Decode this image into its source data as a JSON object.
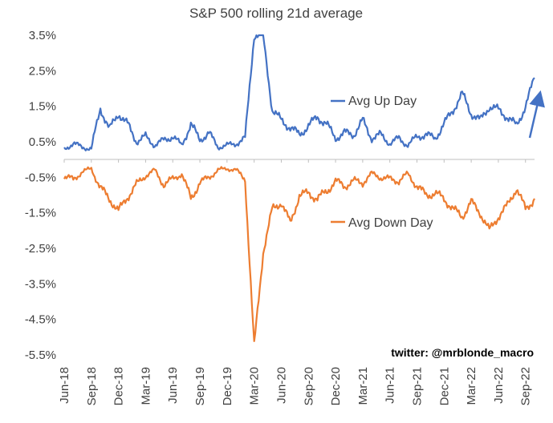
{
  "chart_data": {
    "type": "line",
    "title": "S&P 500 rolling 21d average",
    "xlabel": "",
    "ylabel": "",
    "ylim": [
      -5.5,
      3.5
    ],
    "yticks": [
      "3.5%",
      "2.5%",
      "1.5%",
      "0.5%",
      "-0.5%",
      "-1.5%",
      "-2.5%",
      "-3.5%",
      "-4.5%",
      "-5.5%"
    ],
    "ytick_values": [
      3.5,
      2.5,
      1.5,
      0.5,
      -0.5,
      -1.5,
      -2.5,
      -3.5,
      -4.5,
      -5.5
    ],
    "xticks": [
      "Jun-18",
      "Sep-18",
      "Dec-18",
      "Mar-19",
      "Jun-19",
      "Sep-19",
      "Dec-19",
      "Mar-20",
      "Jun-20",
      "Sep-20",
      "Dec-20",
      "Mar-21",
      "Jun-21",
      "Sep-21",
      "Dec-21",
      "Mar-22",
      "Jun-22",
      "Sep-22"
    ],
    "grid": false,
    "credit": "twitter: @mrblonde_macro",
    "series": [
      {
        "name": "Avg Up Day",
        "color": "#4472C4",
        "points": [
          [
            "Jun-18",
            0.3
          ],
          [
            "Jul-18",
            0.45
          ],
          [
            "Aug-18",
            0.35
          ],
          [
            "Sep-18",
            0.3
          ],
          [
            "Oct-18",
            1.45
          ],
          [
            "Nov-18",
            0.85
          ],
          [
            "Dec-18",
            1.3
          ],
          [
            "Jan-19",
            1.0
          ],
          [
            "Feb-19",
            0.5
          ],
          [
            "Mar-19",
            0.65
          ],
          [
            "Apr-19",
            0.4
          ],
          [
            "May-19",
            0.55
          ],
          [
            "Jun-19",
            0.65
          ],
          [
            "Jul-19",
            0.4
          ],
          [
            "Aug-19",
            1.0
          ],
          [
            "Sep-19",
            0.55
          ],
          [
            "Oct-19",
            0.75
          ],
          [
            "Nov-19",
            0.35
          ],
          [
            "Dec-19",
            0.4
          ],
          [
            "Jan-20",
            0.45
          ],
          [
            "Feb-20",
            0.6
          ],
          [
            "Mar-20",
            3.5
          ],
          [
            "Apr-20",
            3.5
          ],
          [
            "May-20",
            1.4
          ],
          [
            "Jun-20",
            1.1
          ],
          [
            "Jul-20",
            0.9
          ],
          [
            "Aug-20",
            0.7
          ],
          [
            "Sep-20",
            0.95
          ],
          [
            "Oct-20",
            1.2
          ],
          [
            "Nov-20",
            1.0
          ],
          [
            "Dec-20",
            0.6
          ],
          [
            "Jan-21",
            0.75
          ],
          [
            "Feb-21",
            0.7
          ],
          [
            "Mar-21",
            1.1
          ],
          [
            "Apr-21",
            0.6
          ],
          [
            "May-21",
            0.7
          ],
          [
            "Jun-21",
            0.45
          ],
          [
            "Jul-21",
            0.6
          ],
          [
            "Aug-21",
            0.4
          ],
          [
            "Sep-21",
            0.65
          ],
          [
            "Oct-21",
            0.7
          ],
          [
            "Nov-21",
            0.6
          ],
          [
            "Dec-21",
            1.0
          ],
          [
            "Jan-22",
            1.4
          ],
          [
            "Feb-22",
            1.85
          ],
          [
            "Mar-22",
            1.3
          ],
          [
            "Apr-22",
            1.1
          ],
          [
            "May-22",
            1.5
          ],
          [
            "Jun-22",
            1.4
          ],
          [
            "Jul-22",
            1.2
          ],
          [
            "Aug-22",
            0.95
          ],
          [
            "Sep-22",
            1.5
          ],
          [
            "Oct-22",
            2.3
          ]
        ]
      },
      {
        "name": "Avg Down Day",
        "color": "#ED7D31",
        "points": [
          [
            "Jun-18",
            -0.5
          ],
          [
            "Jul-18",
            -0.55
          ],
          [
            "Aug-18",
            -0.35
          ],
          [
            "Sep-18",
            -0.25
          ],
          [
            "Oct-18",
            -0.8
          ],
          [
            "Nov-18",
            -1.1
          ],
          [
            "Dec-18",
            -1.45
          ],
          [
            "Jan-19",
            -1.05
          ],
          [
            "Feb-19",
            -0.7
          ],
          [
            "Mar-19",
            -0.45
          ],
          [
            "Apr-19",
            -0.3
          ],
          [
            "May-19",
            -0.7
          ],
          [
            "Jun-19",
            -0.55
          ],
          [
            "Jul-19",
            -0.4
          ],
          [
            "Aug-19",
            -1.1
          ],
          [
            "Sep-19",
            -0.65
          ],
          [
            "Oct-19",
            -0.5
          ],
          [
            "Nov-19",
            -0.3
          ],
          [
            "Dec-19",
            -0.25
          ],
          [
            "Jan-20",
            -0.3
          ],
          [
            "Feb-20",
            -0.55
          ],
          [
            "Mar-20",
            -5.25
          ],
          [
            "Apr-20",
            -2.6
          ],
          [
            "May-20",
            -1.4
          ],
          [
            "Jun-20",
            -1.2
          ],
          [
            "Jul-20",
            -1.8
          ],
          [
            "Aug-20",
            -1.0
          ],
          [
            "Sep-20",
            -0.95
          ],
          [
            "Oct-20",
            -1.1
          ],
          [
            "Nov-20",
            -0.9
          ],
          [
            "Dec-20",
            -0.6
          ],
          [
            "Jan-21",
            -0.75
          ],
          [
            "Feb-21",
            -0.6
          ],
          [
            "Mar-21",
            -0.65
          ],
          [
            "Apr-21",
            -0.4
          ],
          [
            "May-21",
            -0.5
          ],
          [
            "Jun-21",
            -0.55
          ],
          [
            "Jul-21",
            -0.6
          ],
          [
            "Aug-21",
            -0.4
          ],
          [
            "Sep-21",
            -0.75
          ],
          [
            "Oct-21",
            -1.0
          ],
          [
            "Nov-21",
            -0.95
          ],
          [
            "Dec-21",
            -1.1
          ],
          [
            "Jan-22",
            -1.4
          ],
          [
            "Feb-22",
            -1.6
          ],
          [
            "Mar-22",
            -1.2
          ],
          [
            "Apr-22",
            -1.5
          ],
          [
            "May-22",
            -2.0
          ],
          [
            "Jun-22",
            -1.6
          ],
          [
            "Jul-22",
            -1.3
          ],
          [
            "Aug-22",
            -0.8
          ],
          [
            "Sep-22",
            -1.4
          ],
          [
            "Oct-22",
            -1.1
          ]
        ]
      }
    ],
    "annotations": [
      {
        "text": "Avg Up Day",
        "series": "Avg Up Day"
      },
      {
        "text": "Avg Down Day",
        "series": "Avg Down Day"
      }
    ]
  }
}
